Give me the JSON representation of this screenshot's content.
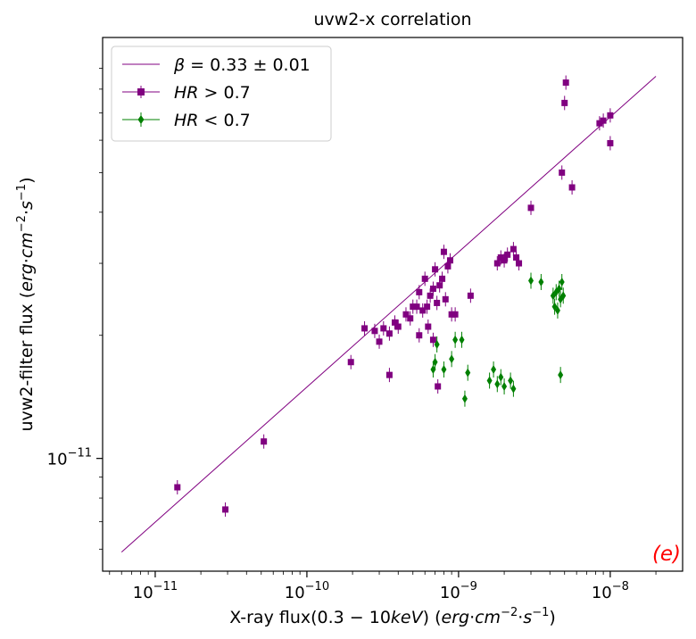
{
  "chart_data": {
    "type": "scatter",
    "title": "uvw2-x correlation",
    "xlabel": {
      "pre": "X-ray flux(0.3 − 10",
      "kev": "keV",
      "mid": ") (",
      "erg": "erg",
      "cm": "cm",
      "s": "s"
    },
    "ylabel": {
      "pre": "uvw2-filter flux (",
      "erg": "erg",
      "cm": "cm",
      "s": "s"
    },
    "xscale": "log",
    "yscale": "log",
    "xlim": [
      4.5e-12,
      3e-08
    ],
    "ylim": [
      5.3e-12,
      1.07e-10
    ],
    "x_ticks": [
      {
        "value": 1e-11,
        "exp": "−11"
      },
      {
        "value": 1e-10,
        "exp": "−10"
      },
      {
        "value": 1e-09,
        "exp": "−9"
      },
      {
        "value": 1e-08,
        "exp": "−8"
      }
    ],
    "y_ticks": [
      {
        "value": 1e-11,
        "exp": "−11"
      }
    ],
    "tick_base": "10",
    "panel_label": "(e)",
    "panel_label_color": "#ff0000",
    "legend": {
      "placement": "upper-left",
      "fit_label": {
        "beta": "β",
        "text": " = 0.33 ± 0.01"
      },
      "hr_high_label": {
        "hr": "HR",
        "text": " > 0.7"
      },
      "hr_low_label": {
        "hr": "HR",
        "text": " < 0.7"
      }
    },
    "fit_line": {
      "x": [
        6e-12,
        2e-08
      ],
      "y": [
        5.9e-12,
        8.6e-11
      ],
      "color": "#800080"
    },
    "series": [
      {
        "marker": "square",
        "color": "#800080",
        "points": [
          [
            1.4e-11,
            8.5e-12
          ],
          [
            2.9e-11,
            7.5e-12
          ],
          [
            5.2e-11,
            1.1e-11
          ],
          [
            1.95e-10,
            1.72e-11
          ],
          [
            2.4e-10,
            2.08e-11
          ],
          [
            2.8e-10,
            2.05e-11
          ],
          [
            3e-10,
            1.93e-11
          ],
          [
            3.2e-10,
            2.08e-11
          ],
          [
            3.5e-10,
            2.02e-11
          ],
          [
            3.5e-10,
            1.6e-11
          ],
          [
            3.8e-10,
            2.15e-11
          ],
          [
            4e-10,
            2.1e-11
          ],
          [
            4.5e-10,
            2.25e-11
          ],
          [
            4.8e-10,
            2.2e-11
          ],
          [
            5e-10,
            2.35e-11
          ],
          [
            5.3e-10,
            2.35e-11
          ],
          [
            5.5e-10,
            2.55e-11
          ],
          [
            5.8e-10,
            2.3e-11
          ],
          [
            6e-10,
            2.75e-11
          ],
          [
            6.2e-10,
            2.35e-11
          ],
          [
            6.5e-10,
            2.5e-11
          ],
          [
            6.8e-10,
            2.6e-11
          ],
          [
            7e-10,
            2.9e-11
          ],
          [
            7.2e-10,
            2.4e-11
          ],
          [
            7.5e-10,
            2.65e-11
          ],
          [
            7.8e-10,
            2.75e-11
          ],
          [
            8e-10,
            3.2e-11
          ],
          [
            8.2e-10,
            2.45e-11
          ],
          [
            8.5e-10,
            2.95e-11
          ],
          [
            8.8e-10,
            3.05e-11
          ],
          [
            9e-10,
            2.25e-11
          ],
          [
            9.5e-10,
            2.25e-11
          ],
          [
            6.8e-10,
            1.95e-11
          ],
          [
            7.3e-10,
            1.5e-11
          ],
          [
            6.3e-10,
            2.1e-11
          ],
          [
            5.5e-10,
            2e-11
          ],
          [
            1.2e-09,
            2.5e-11
          ],
          [
            1.8e-09,
            3e-11
          ],
          [
            1.9e-09,
            3.1e-11
          ],
          [
            2e-09,
            3.05e-11
          ],
          [
            2.1e-09,
            3.15e-11
          ],
          [
            2.3e-09,
            3.25e-11
          ],
          [
            2.4e-09,
            3.1e-11
          ],
          [
            2.5e-09,
            3e-11
          ],
          [
            3e-09,
            4.1e-11
          ],
          [
            4.8e-09,
            5e-11
          ],
          [
            5e-09,
            7.4e-11
          ],
          [
            5.1e-09,
            8.3e-11
          ],
          [
            5.6e-09,
            4.6e-11
          ],
          [
            8.5e-09,
            6.6e-11
          ],
          [
            9e-09,
            6.7e-11
          ],
          [
            1e-08,
            5.9e-11
          ],
          [
            1e-08,
            6.9e-11
          ]
        ]
      },
      {
        "marker": "diamond",
        "color": "#008000",
        "points": [
          [
            6.8e-10,
            1.65e-11
          ],
          [
            7e-10,
            1.72e-11
          ],
          [
            7.2e-10,
            1.9e-11
          ],
          [
            8e-10,
            1.65e-11
          ],
          [
            9e-10,
            1.75e-11
          ],
          [
            9.5e-10,
            1.95e-11
          ],
          [
            1.05e-09,
            1.95e-11
          ],
          [
            1.1e-09,
            1.4e-11
          ],
          [
            1.15e-09,
            1.62e-11
          ],
          [
            1.6e-09,
            1.55e-11
          ],
          [
            1.7e-09,
            1.65e-11
          ],
          [
            1.8e-09,
            1.52e-11
          ],
          [
            1.9e-09,
            1.58e-11
          ],
          [
            2e-09,
            1.5e-11
          ],
          [
            2.2e-09,
            1.55e-11
          ],
          [
            2.3e-09,
            1.48e-11
          ],
          [
            3e-09,
            2.72e-11
          ],
          [
            3.5e-09,
            2.7e-11
          ],
          [
            4.2e-09,
            2.5e-11
          ],
          [
            4.3e-09,
            2.35e-11
          ],
          [
            4.4e-09,
            2.55e-11
          ],
          [
            4.5e-09,
            2.3e-11
          ],
          [
            4.6e-09,
            2.6e-11
          ],
          [
            4.7e-09,
            2.45e-11
          ],
          [
            4.8e-09,
            2.7e-11
          ],
          [
            4.9e-09,
            2.5e-11
          ],
          [
            4.7e-09,
            1.6e-11
          ]
        ]
      }
    ]
  }
}
